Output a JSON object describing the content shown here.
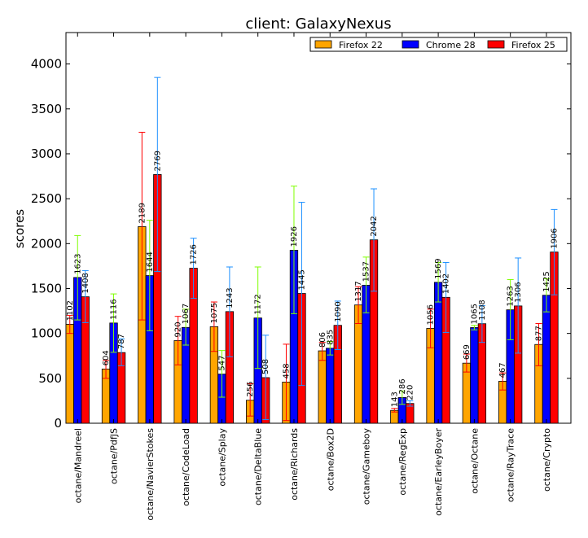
{
  "chart_data": {
    "type": "bar",
    "title": "client: GalaxyNexus",
    "xlabel": "",
    "ylabel": "scores",
    "ylim": [
      0,
      4350
    ],
    "yticks": [
      0,
      500,
      1000,
      1500,
      2000,
      2500,
      3000,
      3500,
      4000
    ],
    "grid": false,
    "legend_position": "top-right",
    "categories": [
      "octane/Mandreel",
      "octane/PdfJS",
      "octane/NavierStokes",
      "octane/CodeLoad",
      "octane/Splay",
      "octane/DeltaBlue",
      "octane/Richards",
      "octane/Box2D",
      "octane/Gameboy",
      "octane/RegExp",
      "octane/EarleyBoyer",
      "octane/Octane",
      "octane/RayTrace",
      "octane/Crypto"
    ],
    "series": [
      {
        "name": "Firefox 22",
        "color": "#ffa500",
        "error_color": "#ff0000",
        "values": [
          1102,
          604,
          2189,
          920,
          1075,
          256,
          458,
          806,
          1317,
          143,
          1056,
          669,
          467,
          877
        ],
        "error_low": [
          1000,
          500,
          1150,
          650,
          800,
          80,
          30,
          700,
          1110,
          125,
          840,
          570,
          370,
          640
        ],
        "error_high": [
          1200,
          700,
          3240,
          1190,
          1350,
          440,
          880,
          900,
          1520,
          165,
          1270,
          770,
          560,
          1110
        ]
      },
      {
        "name": "Chrome 28",
        "color": "#0000ff",
        "error_color": "#7fff00",
        "values": [
          1623,
          1116,
          1644,
          1067,
          547,
          1172,
          1926,
          835,
          1537,
          286,
          1569,
          1065,
          1263,
          1425
        ],
        "error_low": [
          1150,
          790,
          1030,
          870,
          290,
          610,
          1220,
          760,
          1230,
          210,
          1350,
          1040,
          930,
          1240
        ],
        "error_high": [
          2090,
          1440,
          2260,
          1270,
          810,
          1740,
          2640,
          910,
          1850,
          360,
          1790,
          1090,
          1600,
          1610
        ]
      },
      {
        "name": "Firefox 25",
        "color": "#ff0000",
        "error_color": "#1e90ff",
        "values": [
          1408,
          787,
          2769,
          1726,
          1243,
          508,
          1445,
          1090,
          2042,
          220,
          1402,
          1108,
          1306,
          1906
        ],
        "error_low": [
          1120,
          640,
          1690,
          1390,
          740,
          40,
          420,
          820,
          1470,
          190,
          1010,
          900,
          780,
          1430
        ],
        "error_high": [
          1700,
          940,
          3850,
          2060,
          1740,
          980,
          2460,
          1360,
          2610,
          250,
          1790,
          1310,
          1840,
          2380
        ]
      }
    ]
  }
}
